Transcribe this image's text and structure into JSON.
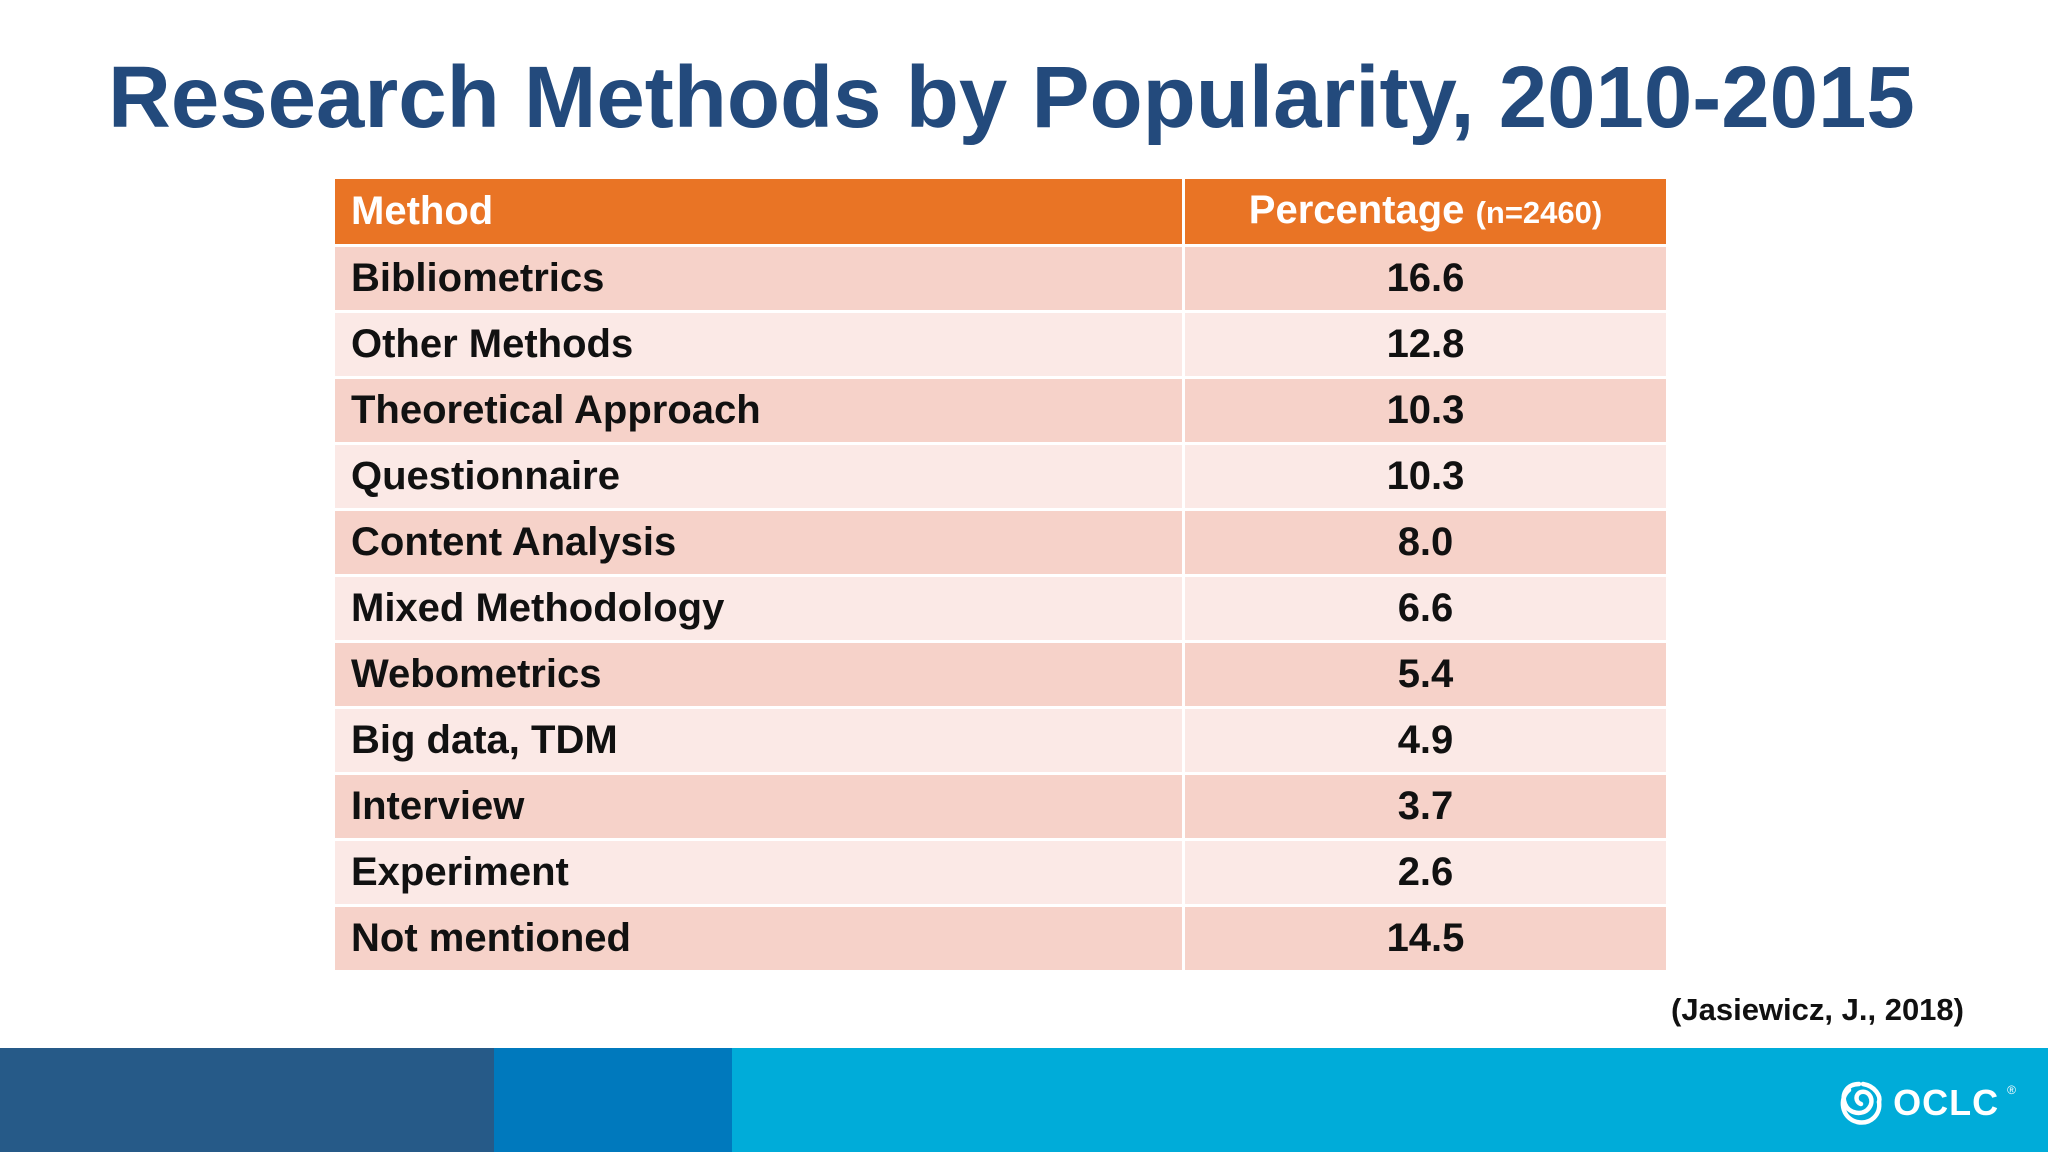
{
  "slide": {
    "title": "Research Methods by Popularity, 2010-2015",
    "citation": "(Jasiewicz, J., 2018)"
  },
  "table": {
    "header": {
      "method": "Method",
      "percentage": "Percentage",
      "n_note": "(n=2460)"
    },
    "rows": [
      {
        "method": "Bibliometrics",
        "percentage": "16.6"
      },
      {
        "method": "Other Methods",
        "percentage": "12.8"
      },
      {
        "method": "Theoretical Approach",
        "percentage": "10.3"
      },
      {
        "method": "Questionnaire",
        "percentage": "10.3"
      },
      {
        "method": "Content Analysis",
        "percentage": "8.0"
      },
      {
        "method": "Mixed Methodology",
        "percentage": "6.6"
      },
      {
        "method": "Webometrics",
        "percentage": "5.4"
      },
      {
        "method": "Big data, TDM",
        "percentage": "4.9"
      },
      {
        "method": "Interview",
        "percentage": "3.7"
      },
      {
        "method": "Experiment",
        "percentage": "2.6"
      },
      {
        "method": "Not mentioned",
        "percentage": "14.5"
      }
    ]
  },
  "footer": {
    "logo_text": "OCLC",
    "logo_mark": "®",
    "logo_icon": "oclc-swirl-icon"
  },
  "colors": {
    "title": "#234a7c",
    "header_bg": "#e97425",
    "row_odd": "#f6d2c9",
    "row_even": "#fbe9e6",
    "footer_dark_blue": "#265a88",
    "footer_mid_blue": "#0079bd",
    "footer_light_blue": "#00acd9"
  }
}
